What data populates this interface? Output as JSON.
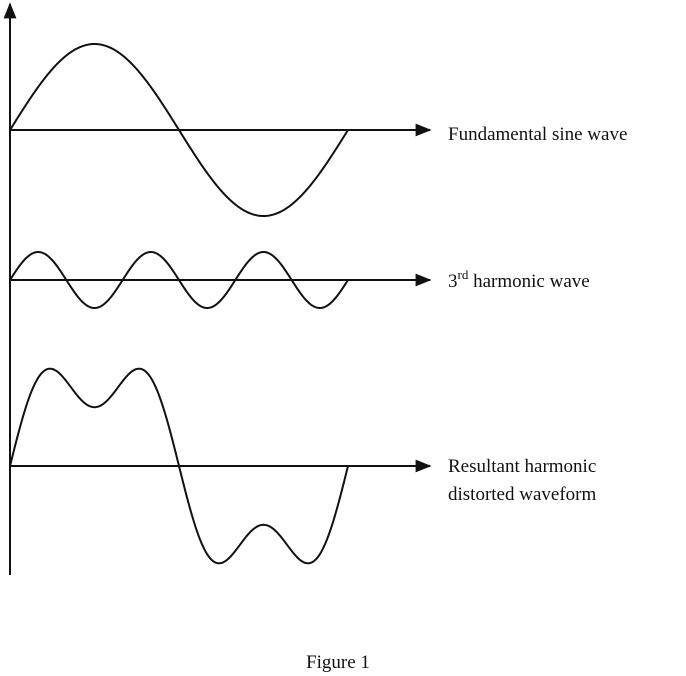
{
  "labels": {
    "fundamental": "Fundamental sine wave",
    "third": {
      "number": "3",
      "suffix": "rd",
      "text": " harmonic wave"
    },
    "resultant": [
      "Resultant harmonic",
      "distorted waveform"
    ]
  },
  "caption": "Figure 1"
}
